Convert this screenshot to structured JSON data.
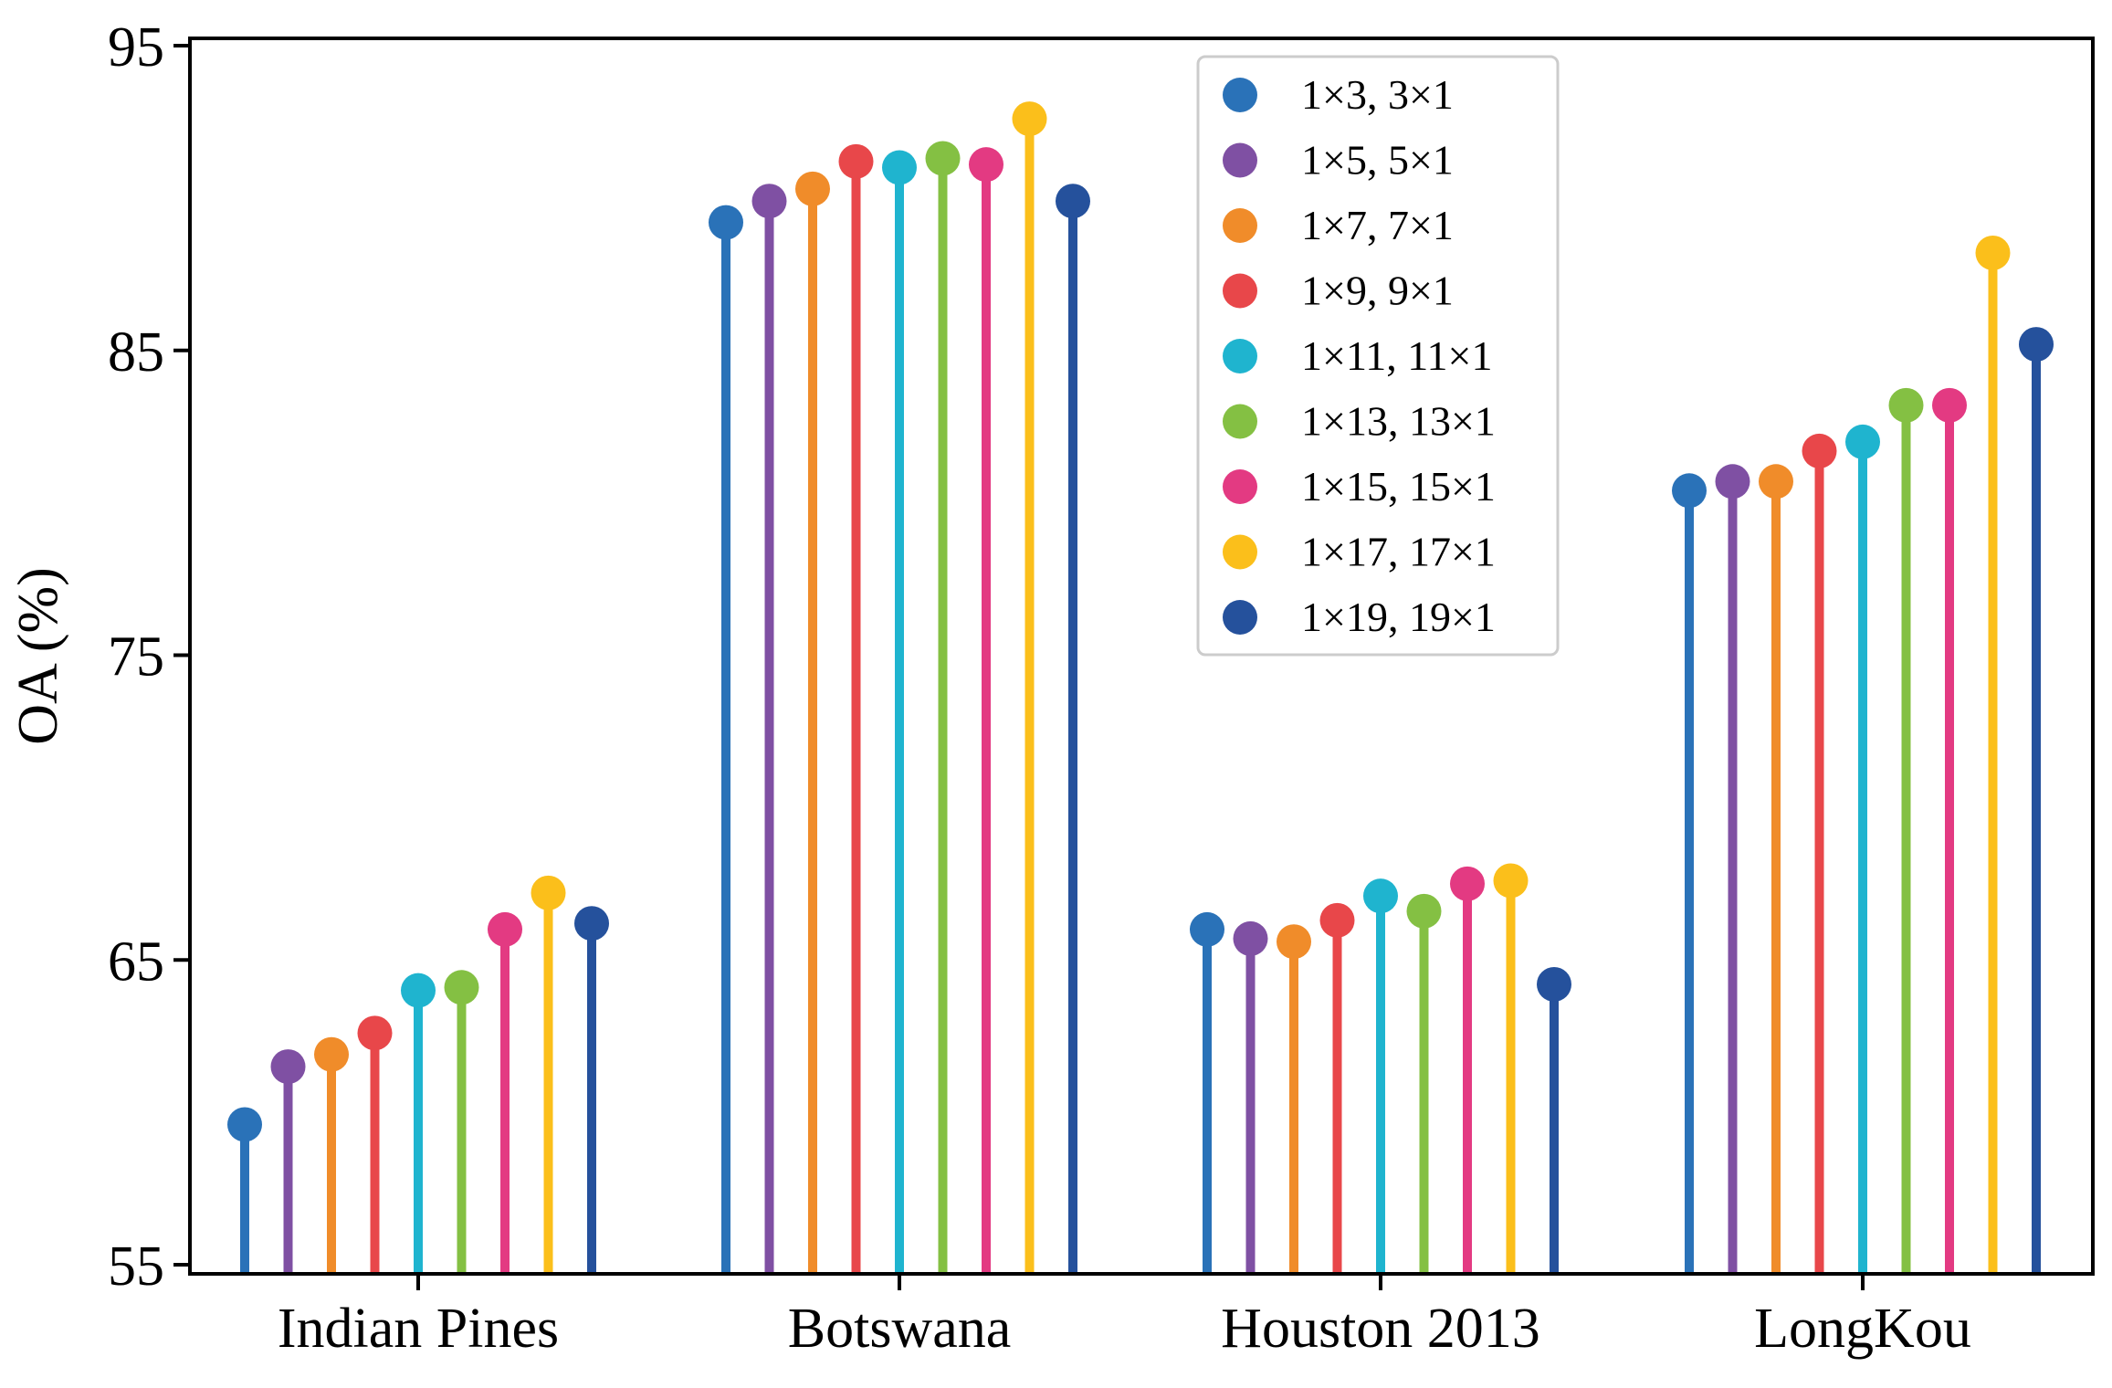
{
  "chart_data": {
    "type": "scatter",
    "subtype": "lollipop",
    "title": "",
    "xlabel": "",
    "ylabel": "OA (%)",
    "ylim": [
      55,
      95
    ],
    "yticks": [
      55,
      65,
      75,
      85,
      95
    ],
    "categories": [
      "Indian Pines",
      "Botswana",
      "Houston 2013",
      "LongKou"
    ],
    "grid": false,
    "legend_position": "top-center",
    "series": [
      {
        "name": "1×3, 3×1",
        "color": "#2a72b8",
        "values": [
          59.6,
          89.2,
          66.0,
          80.4
        ]
      },
      {
        "name": "1×5, 5×1",
        "color": "#7f50a3",
        "values": [
          61.5,
          89.9,
          65.7,
          80.7
        ]
      },
      {
        "name": "1×7, 7×1",
        "color": "#f08c2a",
        "values": [
          61.9,
          90.3,
          65.6,
          80.7
        ]
      },
      {
        "name": "1×9, 9×1",
        "color": "#e8474a",
        "values": [
          62.6,
          91.2,
          66.3,
          81.7
        ]
      },
      {
        "name": "1×11, 11×1",
        "color": "#1fb4cf",
        "values": [
          64.0,
          91.0,
          67.1,
          82.0
        ]
      },
      {
        "name": "1×13, 13×1",
        "color": "#84c043",
        "values": [
          64.1,
          91.3,
          66.6,
          83.2
        ]
      },
      {
        "name": "1×15, 15×1",
        "color": "#e33a82",
        "values": [
          66.0,
          91.1,
          67.5,
          83.2
        ]
      },
      {
        "name": "1×17, 17×1",
        "color": "#fbbf1b",
        "values": [
          67.2,
          92.6,
          67.6,
          88.2
        ]
      },
      {
        "name": "1×19, 19×1",
        "color": "#25519c",
        "values": [
          66.2,
          89.9,
          64.2,
          85.2
        ]
      }
    ]
  }
}
